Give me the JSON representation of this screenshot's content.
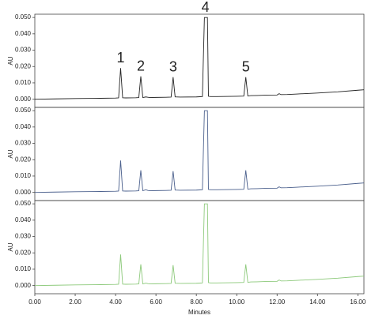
{
  "chart_data": [
    {
      "type": "line",
      "ylabel": "AU",
      "x": [
        0,
        1,
        2,
        3,
        4,
        4.15,
        4.25,
        4.35,
        4.5,
        5.0,
        5.15,
        5.25,
        5.35,
        5.5,
        5.6,
        5.7,
        6.0,
        6.5,
        6.75,
        6.85,
        6.95,
        7.2,
        8.0,
        8.3,
        8.4,
        8.45,
        8.5,
        8.55,
        8.6,
        8.7,
        9.0,
        10.0,
        10.35,
        10.45,
        10.55,
        10.7,
        11.0,
        11.5,
        12.0,
        12.1,
        12.2,
        12.5,
        13.0,
        14.0,
        15.0,
        16.0,
        16.3
      ],
      "series": [
        {
          "color": "#222222",
          "values": [
            0,
            0.0002,
            0.0004,
            0.0005,
            0.0007,
            0.0008,
            0.019,
            0.0009,
            0.0008,
            0.0009,
            0.001,
            0.014,
            0.001,
            0.0014,
            0.0012,
            0.001,
            0.0011,
            0.0012,
            0.0013,
            0.0135,
            0.0014,
            0.0013,
            0.0014,
            0.0016,
            0.05,
            0.05,
            0.05,
            0.05,
            0.0018,
            0.0016,
            0.0016,
            0.0018,
            0.0019,
            0.0135,
            0.002,
            0.0022,
            0.0023,
            0.0025,
            0.0026,
            0.0034,
            0.0028,
            0.0029,
            0.0032,
            0.0038,
            0.0045,
            0.0055,
            0.0058
          ]
        }
      ],
      "xlim": [
        0,
        16.3
      ],
      "ylim": [
        -0.005,
        0.052
      ],
      "yticks": [
        {
          "value": 0,
          "label": "0.000"
        },
        {
          "value": 0.01,
          "label": "0.010"
        },
        {
          "value": 0.02,
          "label": "0.020"
        },
        {
          "value": 0.03,
          "label": "0.030"
        },
        {
          "value": 0.04,
          "label": "0.040"
        },
        {
          "value": 0.05,
          "label": "0.050"
        }
      ],
      "annotations": [
        {
          "text": "1",
          "x": 4.25,
          "y": 0.019
        },
        {
          "text": "2",
          "x": 5.25,
          "y": 0.014
        },
        {
          "text": "3",
          "x": 6.85,
          "y": 0.0135
        },
        {
          "text": "4",
          "x": 8.45,
          "y": 0.05
        },
        {
          "text": "5",
          "x": 10.45,
          "y": 0.0135
        }
      ]
    },
    {
      "type": "line",
      "ylabel": "AU",
      "x": [
        0,
        1,
        2,
        3,
        4,
        4.15,
        4.25,
        4.35,
        4.5,
        5.0,
        5.15,
        5.25,
        5.35,
        5.5,
        5.6,
        5.7,
        6.0,
        6.5,
        6.75,
        6.85,
        6.95,
        7.2,
        8.0,
        8.3,
        8.4,
        8.45,
        8.5,
        8.55,
        8.6,
        8.7,
        9.0,
        10.0,
        10.35,
        10.45,
        10.55,
        10.7,
        11.0,
        11.5,
        12.0,
        12.1,
        12.2,
        12.5,
        13.0,
        14.0,
        15.0,
        16.0,
        16.3
      ],
      "series": [
        {
          "color": "#4a5f8c",
          "values": [
            0,
            0.0002,
            0.0004,
            0.0005,
            0.0007,
            0.0008,
            0.0195,
            0.0009,
            0.0008,
            0.0009,
            0.001,
            0.0135,
            0.001,
            0.0016,
            0.0012,
            0.001,
            0.0011,
            0.0012,
            0.0013,
            0.013,
            0.0014,
            0.0013,
            0.0014,
            0.0016,
            0.05,
            0.05,
            0.05,
            0.05,
            0.0018,
            0.0016,
            0.0016,
            0.0018,
            0.0019,
            0.0135,
            0.002,
            0.0022,
            0.0023,
            0.0025,
            0.0026,
            0.0034,
            0.0028,
            0.0029,
            0.0032,
            0.0038,
            0.0045,
            0.0055,
            0.0058
          ]
        }
      ],
      "xlim": [
        0,
        16.3
      ],
      "ylim": [
        -0.005,
        0.052
      ],
      "yticks": [
        {
          "value": 0,
          "label": "0.000"
        },
        {
          "value": 0.01,
          "label": "0.010"
        },
        {
          "value": 0.02,
          "label": "0.020"
        },
        {
          "value": 0.03,
          "label": "0.030"
        },
        {
          "value": 0.04,
          "label": "0.040"
        },
        {
          "value": 0.05,
          "label": "0.050"
        }
      ]
    },
    {
      "type": "line",
      "ylabel": "AU",
      "xlabel": "Minutes",
      "x": [
        0,
        1,
        2,
        3,
        4,
        4.15,
        4.25,
        4.35,
        4.5,
        5.0,
        5.15,
        5.25,
        5.35,
        5.5,
        5.6,
        5.7,
        6.0,
        6.5,
        6.75,
        6.85,
        6.95,
        7.2,
        8.0,
        8.3,
        8.4,
        8.45,
        8.5,
        8.55,
        8.6,
        8.7,
        9.0,
        10.0,
        10.35,
        10.45,
        10.55,
        10.7,
        11.0,
        11.5,
        12.0,
        12.1,
        12.2,
        12.5,
        13.0,
        14.0,
        15.0,
        16.0,
        16.3
      ],
      "series": [
        {
          "color": "#8cc97a",
          "values": [
            0,
            0.0002,
            0.0004,
            0.0005,
            0.0007,
            0.0008,
            0.019,
            0.0009,
            0.0008,
            0.0009,
            0.001,
            0.013,
            0.001,
            0.0015,
            0.0012,
            0.001,
            0.0011,
            0.0012,
            0.0013,
            0.0125,
            0.0014,
            0.0013,
            0.0014,
            0.0016,
            0.05,
            0.05,
            0.05,
            0.05,
            0.0018,
            0.0016,
            0.0016,
            0.0018,
            0.0019,
            0.013,
            0.002,
            0.0022,
            0.0023,
            0.0025,
            0.0026,
            0.0034,
            0.0028,
            0.0029,
            0.0032,
            0.0038,
            0.0045,
            0.0055,
            0.0058
          ]
        }
      ],
      "xlim": [
        0,
        16.3
      ],
      "ylim": [
        -0.005,
        0.052
      ],
      "yticks": [
        {
          "value": 0,
          "label": "0.000"
        },
        {
          "value": 0.01,
          "label": "0.010"
        },
        {
          "value": 0.02,
          "label": "0.020"
        },
        {
          "value": 0.03,
          "label": "0.030"
        },
        {
          "value": 0.04,
          "label": "0.040"
        },
        {
          "value": 0.05,
          "label": "0.050"
        }
      ],
      "xticks": [
        {
          "value": 0,
          "label": "0.00"
        },
        {
          "value": 2,
          "label": "2.00"
        },
        {
          "value": 4,
          "label": "4.00"
        },
        {
          "value": 6,
          "label": "6.00"
        },
        {
          "value": 8,
          "label": "8.00"
        },
        {
          "value": 10,
          "label": "10.00"
        },
        {
          "value": 12,
          "label": "12.00"
        },
        {
          "value": 14,
          "label": "14.00"
        },
        {
          "value": 16,
          "label": "16.00"
        }
      ]
    }
  ]
}
